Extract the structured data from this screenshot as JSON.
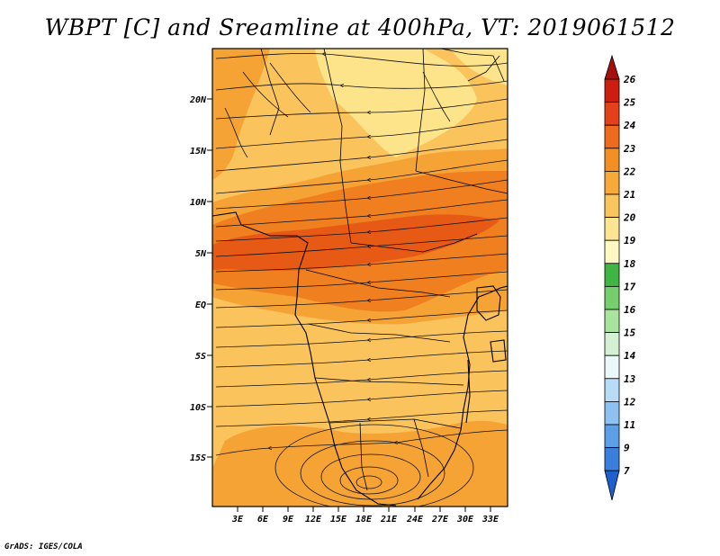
{
  "title": "WBPT [C] and Sreamline at 400hPa, VT: 2019061512",
  "credit": "GrADS: IGES/COLA",
  "map": {
    "lat_labels": [
      "20N",
      "15N",
      "10N",
      "5N",
      "EQ",
      "5S",
      "10S",
      "15S"
    ],
    "lon_labels": [
      "3E",
      "6E",
      "9E",
      "12E",
      "15E",
      "18E",
      "21E",
      "24E",
      "27E",
      "30E",
      "33E"
    ],
    "palette": {
      "t19_20": "#fde38a",
      "t20_21": "#fac35c",
      "t21_22": "#f6a336",
      "t22_23": "#ef7f1f",
      "t23_24": "#e75a15"
    }
  },
  "colorbar": {
    "labels": [
      "26",
      "25",
      "24",
      "23",
      "22",
      "21",
      "20",
      "19",
      "18",
      "17",
      "16",
      "15",
      "14",
      "13",
      "12",
      "11",
      "9",
      "7"
    ],
    "colors": [
      "#a50f0f",
      "#cc1d0f",
      "#e4401a",
      "#ee6a1c",
      "#f28f24",
      "#f6aa3a",
      "#fac55c",
      "#fde592",
      "#fdf8c2",
      "#3fb544",
      "#74cf6c",
      "#a8e49c",
      "#d4f2d3",
      "#eaf7fb",
      "#b6dcf7",
      "#8cc1f1",
      "#5b9fe7",
      "#3a7fdc",
      "#1e5fcb"
    ]
  }
}
